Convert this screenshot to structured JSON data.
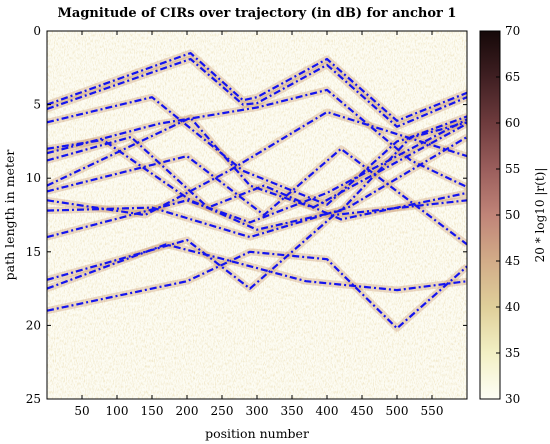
{
  "chart_data": {
    "type": "heatmap",
    "title": "Magnitude of CIRs over trajectory (in dB) for anchor 1",
    "xlabel": "position number",
    "ylabel": "path length in meter",
    "xlim": [
      0,
      600
    ],
    "ylim": [
      25,
      0
    ],
    "x_ticks": [
      "50",
      "100",
      "150",
      "200",
      "250",
      "300",
      "350",
      "400",
      "450",
      "500",
      "550"
    ],
    "y_ticks": [
      "0",
      "5",
      "10",
      "15",
      "20",
      "25"
    ],
    "colorbar": {
      "label": "20 * log10 |r(t)|",
      "range": [
        30,
        70
      ],
      "ticks": [
        "30",
        "35",
        "40",
        "45",
        "50",
        "55",
        "60",
        "65",
        "70"
      ],
      "colors": [
        "#fefef6",
        "#f2f0c4",
        "#dfcf9a",
        "#d2ac88",
        "#c08478",
        "#9a5e5c",
        "#6e3b3d",
        "#3f1f22",
        "#150808"
      ]
    },
    "series": [
      {
        "x": [
          0,
          205,
          280,
          300,
          400,
          500,
          600
        ],
        "y": [
          5.0,
          1.5,
          4.7,
          4.5,
          1.9,
          6.1,
          4.2
        ]
      },
      {
        "x": [
          0,
          205,
          280,
          300,
          400,
          500,
          600
        ],
        "y": [
          5.3,
          1.9,
          5.0,
          4.9,
          2.3,
          6.5,
          4.5
        ]
      },
      {
        "x": [
          0,
          150,
          280,
          400,
          500,
          600
        ],
        "y": [
          6.2,
          4.5,
          9.5,
          11.8,
          7.5,
          6.2
        ]
      },
      {
        "x": [
          0,
          160,
          300,
          400,
          520,
          600
        ],
        "y": [
          8.3,
          6.3,
          5.2,
          4.0,
          8.8,
          10.6
        ]
      },
      {
        "x": [
          0,
          80,
          205,
          300,
          420,
          520,
          600
        ],
        "y": [
          8.0,
          7.4,
          11.5,
          13.5,
          12.2,
          7.2,
          5.8
        ]
      },
      {
        "x": [
          0,
          120,
          230,
          310,
          420,
          600
        ],
        "y": [
          8.8,
          7.2,
          12.0,
          10.5,
          12.8,
          11.0
        ]
      },
      {
        "x": [
          0,
          205,
          290,
          380,
          600
        ],
        "y": [
          10.5,
          5.9,
          10.5,
          12.0,
          6.3
        ]
      },
      {
        "x": [
          0,
          200,
          310,
          420,
          600
        ],
        "y": [
          10.9,
          8.5,
          12.5,
          8.0,
          14.5
        ]
      },
      {
        "x": [
          0,
          140,
          260,
          400,
          600
        ],
        "y": [
          11.5,
          12.5,
          9.5,
          5.5,
          8.5
        ]
      },
      {
        "x": [
          0,
          150,
          290,
          430,
          600
        ],
        "y": [
          12.2,
          12.0,
          14.0,
          12.0,
          7.2
        ]
      },
      {
        "x": [
          0,
          200,
          290,
          400,
          600
        ],
        "y": [
          14.0,
          11.5,
          13.0,
          11.0,
          6.0
        ]
      },
      {
        "x": [
          0,
          200,
          290,
          410,
          600
        ],
        "y": [
          16.9,
          14.2,
          17.5,
          12.5,
          11.5
        ]
      },
      {
        "x": [
          0,
          200,
          290,
          400,
          500,
          600
        ],
        "y": [
          19.0,
          17.0,
          15.0,
          15.5,
          20.2,
          16.0
        ]
      },
      {
        "x": [
          0,
          170,
          260,
          370,
          500,
          600
        ],
        "y": [
          17.5,
          14.5,
          15.6,
          17.0,
          17.6,
          17.0
        ]
      }
    ]
  }
}
